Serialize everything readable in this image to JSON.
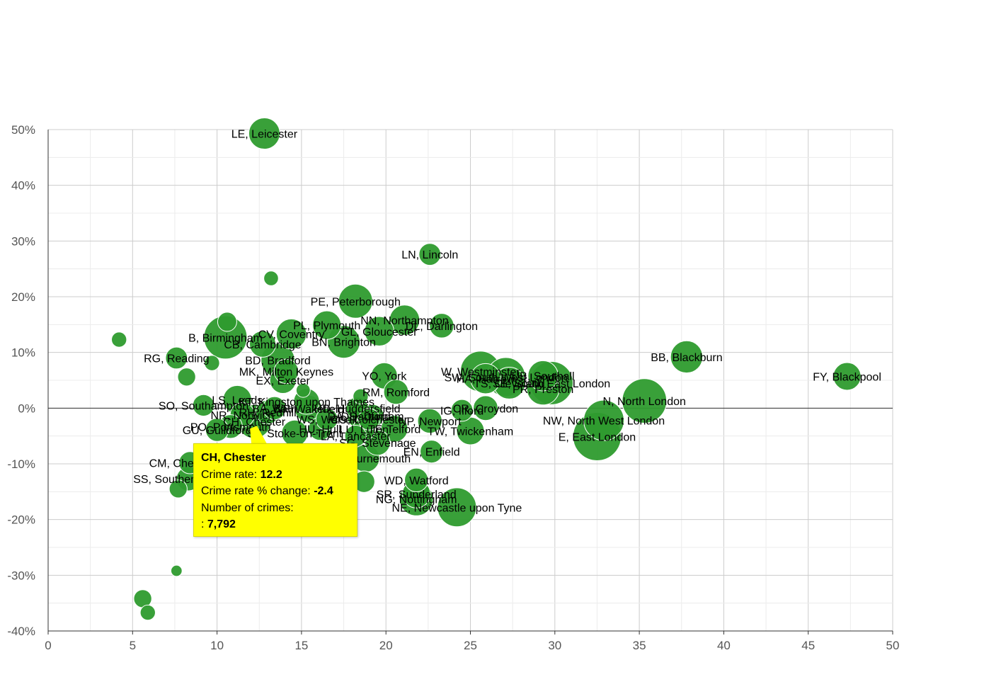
{
  "chart_data": {
    "type": "scatter",
    "title": "",
    "xlabel": "",
    "ylabel": "",
    "xlim": [
      0,
      50
    ],
    "ylim": [
      -40,
      50
    ],
    "x_ticks": [
      "0",
      "5",
      "10",
      "15",
      "20",
      "25",
      "30",
      "35",
      "40",
      "45",
      "50"
    ],
    "y_ticks": [
      "-40%",
      "-30%",
      "-20%",
      "-10%",
      "0%",
      "10%",
      "20%",
      "30%",
      "40%",
      "50%"
    ],
    "grid": true,
    "bubble_color": "#2e9b2e",
    "points": [
      {
        "label": "LE, Leicester",
        "x": 12.8,
        "y": 49.3,
        "size": 6500
      },
      {
        "label": "LN, Lincoln",
        "x": 22.6,
        "y": 27.6,
        "size": 2600
      },
      {
        "label": "",
        "x": 13.2,
        "y": 23.3,
        "size": 800
      },
      {
        "label": "PE, Peterborough",
        "x": 18.2,
        "y": 19.2,
        "size": 8000
      },
      {
        "label": "NN, Northampton",
        "x": 21.1,
        "y": 15.8,
        "size": 6000
      },
      {
        "label": "DL, Darlington",
        "x": 23.3,
        "y": 14.8,
        "size": 3500
      },
      {
        "label": "PL, Plymouth",
        "x": 16.5,
        "y": 14.9,
        "size": 5200
      },
      {
        "label": "GL, Gloucester",
        "x": 19.6,
        "y": 13.8,
        "size": 5600
      },
      {
        "label": "BN, Brighton",
        "x": 17.5,
        "y": 11.9,
        "size": 7200
      },
      {
        "label": "CV, Coventry",
        "x": 14.4,
        "y": 13.3,
        "size": 6000
      },
      {
        "label": "B, Birmingham",
        "x": 10.5,
        "y": 12.7,
        "size": 14000
      },
      {
        "label": "",
        "x": 10.6,
        "y": 15.5,
        "size": 1800
      },
      {
        "label": "",
        "x": 4.2,
        "y": 12.3,
        "size": 900
      },
      {
        "label": "CB, Cambridge",
        "x": 12.7,
        "y": 11.5,
        "size": 4200
      },
      {
        "label": "RG, Reading",
        "x": 7.6,
        "y": 9.0,
        "size": 2600
      },
      {
        "label": "BD, Bradford",
        "x": 13.6,
        "y": 8.6,
        "size": 7800
      },
      {
        "label": "",
        "x": 9.7,
        "y": 8.1,
        "size": 900
      },
      {
        "label": "MK, Milton Keynes",
        "x": 14.1,
        "y": 6.6,
        "size": 3500
      },
      {
        "label": "EX, Exeter",
        "x": 13.9,
        "y": 5.0,
        "size": 4200
      },
      {
        "label": "",
        "x": 8.2,
        "y": 5.6,
        "size": 1500
      },
      {
        "label": "YO, York",
        "x": 19.9,
        "y": 5.8,
        "size": 4200
      },
      {
        "label": "W, Westminster",
        "x": 25.6,
        "y": 6.6,
        "size": 12000
      },
      {
        "label": "HA, Harrow",
        "x": 25.9,
        "y": 5.3,
        "size": 6000
      },
      {
        "label": "SW, South West London",
        "x": 27.1,
        "y": 5.6,
        "size": 11000
      },
      {
        "label": "UB, Southall",
        "x": 29.3,
        "y": 5.8,
        "size": 6000
      },
      {
        "label": "SE, South East London",
        "x": 29.8,
        "y": 4.5,
        "size": 14000
      },
      {
        "label": "TS, Cleveland",
        "x": 27.3,
        "y": 4.5,
        "size": 6800
      },
      {
        "label": "PR, Preston",
        "x": 29.3,
        "y": 3.5,
        "size": 7200
      },
      {
        "label": "BB, Blackburn",
        "x": 37.8,
        "y": 9.2,
        "size": 7000
      },
      {
        "label": "FY, Blackpool",
        "x": 47.3,
        "y": 5.7,
        "size": 4800
      },
      {
        "label": "RM, Romford",
        "x": 20.6,
        "y": 2.9,
        "size": 3600
      },
      {
        "label": "N, North London",
        "x": 35.3,
        "y": 1.3,
        "size": 15000
      },
      {
        "label": "IG, Ilford",
        "x": 24.5,
        "y": -0.4,
        "size": 2600
      },
      {
        "label": "CR, Croydon",
        "x": 25.9,
        "y": 0.0,
        "size": 3600
      },
      {
        "label": "NW, North West London",
        "x": 32.9,
        "y": -2.2,
        "size": 12000
      },
      {
        "label": "E, East London",
        "x": 32.5,
        "y": -5.1,
        "size": 18000
      },
      {
        "label": "NP, Newport",
        "x": 22.6,
        "y": -2.3,
        "size": 3500
      },
      {
        "label": "TW, Twickenham",
        "x": 25.0,
        "y": -4.1,
        "size": 4800
      },
      {
        "label": "EN, Enfield",
        "x": 22.7,
        "y": -7.8,
        "size": 2900
      },
      {
        "label": "LS, Leeds",
        "x": 11.2,
        "y": 1.5,
        "size": 5200
      },
      {
        "label": "KT, Kingston upon Thames",
        "x": 15.3,
        "y": 1.2,
        "size": 4000
      },
      {
        "label": "",
        "x": 15.1,
        "y": 3.2,
        "size": 700
      },
      {
        "label": "SO, Southampton",
        "x": 9.2,
        "y": 0.5,
        "size": 2500
      },
      {
        "label": "WF, Wakefield",
        "x": 15.4,
        "y": -0.1,
        "size": 4500
      },
      {
        "label": "BA, Bath",
        "x": 13.4,
        "y": 0.0,
        "size": 3000
      },
      {
        "label": "RH, Redhill",
        "x": 13.0,
        "y": -0.7,
        "size": 3300
      },
      {
        "label": "NR, Norwich",
        "x": 11.5,
        "y": -1.2,
        "size": 3500
      },
      {
        "label": "HD, Huddersfield",
        "x": 18.3,
        "y": 0.0,
        "size": 2700
      },
      {
        "label": "",
        "x": 18.5,
        "y": 2.1,
        "size": 900
      },
      {
        "label": "DH, Durham",
        "x": 19.2,
        "y": -1.4,
        "size": 3000
      },
      {
        "label": "DA, Dartford",
        "x": 18.4,
        "y": -1.4,
        "size": 3400
      },
      {
        "label": "CO, Colchester",
        "x": 19.0,
        "y": -2.0,
        "size": 2500
      },
      {
        "label": "WS, Walsall",
        "x": 16.5,
        "y": -2.0,
        "size": 2600
      },
      {
        "label": "CH, Chester",
        "x": 12.2,
        "y": -2.4,
        "size": 7792
      },
      {
        "label": "PO, Portsmouth",
        "x": 10.8,
        "y": -3.3,
        "size": 3200
      },
      {
        "label": "LU, Luton",
        "x": 18.7,
        "y": -3.8,
        "size": 2800
      },
      {
        "label": "HU, Hull",
        "x": 16.1,
        "y": -3.7,
        "size": 3000
      },
      {
        "label": "SG, Stevenage",
        "x": 19.5,
        "y": -6.2,
        "size": 3800
      },
      {
        "label": "LA, Lancaster",
        "x": 18.2,
        "y": -5.0,
        "size": 2500
      },
      {
        "label": "TF, Telford",
        "x": 20.5,
        "y": -3.7,
        "size": 4400
      },
      {
        "label": "GU, Guildford",
        "x": 10.0,
        "y": -3.9,
        "size": 3000
      },
      {
        "label": "ST, Stoke-on-Trent",
        "x": 14.6,
        "y": -4.5,
        "size": 4200
      },
      {
        "label": "BH, Bournemouth",
        "x": 18.8,
        "y": -9.0,
        "size": 4800
      },
      {
        "label": "CM, Chelmsford",
        "x": 8.4,
        "y": -9.8,
        "size": 2700
      },
      {
        "label": "SS, Southend-on-Sea",
        "x": 8.3,
        "y": -12.7,
        "size": 3300
      },
      {
        "label": "",
        "x": 7.7,
        "y": -14.5,
        "size": 1500
      },
      {
        "label": "",
        "x": 18.7,
        "y": -13.2,
        "size": 2500
      },
      {
        "label": "WD, Watford",
        "x": 21.8,
        "y": -12.9,
        "size": 3200
      },
      {
        "label": "SR, Sunderland",
        "x": 21.8,
        "y": -15.4,
        "size": 5000
      },
      {
        "label": "NG, Nottingham",
        "x": 21.8,
        "y": -16.3,
        "size": 7800
      },
      {
        "label": "NE, Newcastle upon Tyne",
        "x": 24.2,
        "y": -17.8,
        "size": 11000
      },
      {
        "label": "",
        "x": 7.6,
        "y": -29.2,
        "size": 300
      },
      {
        "label": "",
        "x": 5.6,
        "y": -34.2,
        "size": 1500
      },
      {
        "label": "",
        "x": 5.9,
        "y": -36.7,
        "size": 900
      }
    ]
  },
  "tooltip": {
    "title": "CH, Chester",
    "rate_label": "Crime rate:",
    "rate_value": "12.2",
    "change_label": "Crime rate % change:",
    "change_value": "-2.4",
    "count_label": "Number of crimes:",
    "count_prefix": ":",
    "count_value": "7,792"
  }
}
